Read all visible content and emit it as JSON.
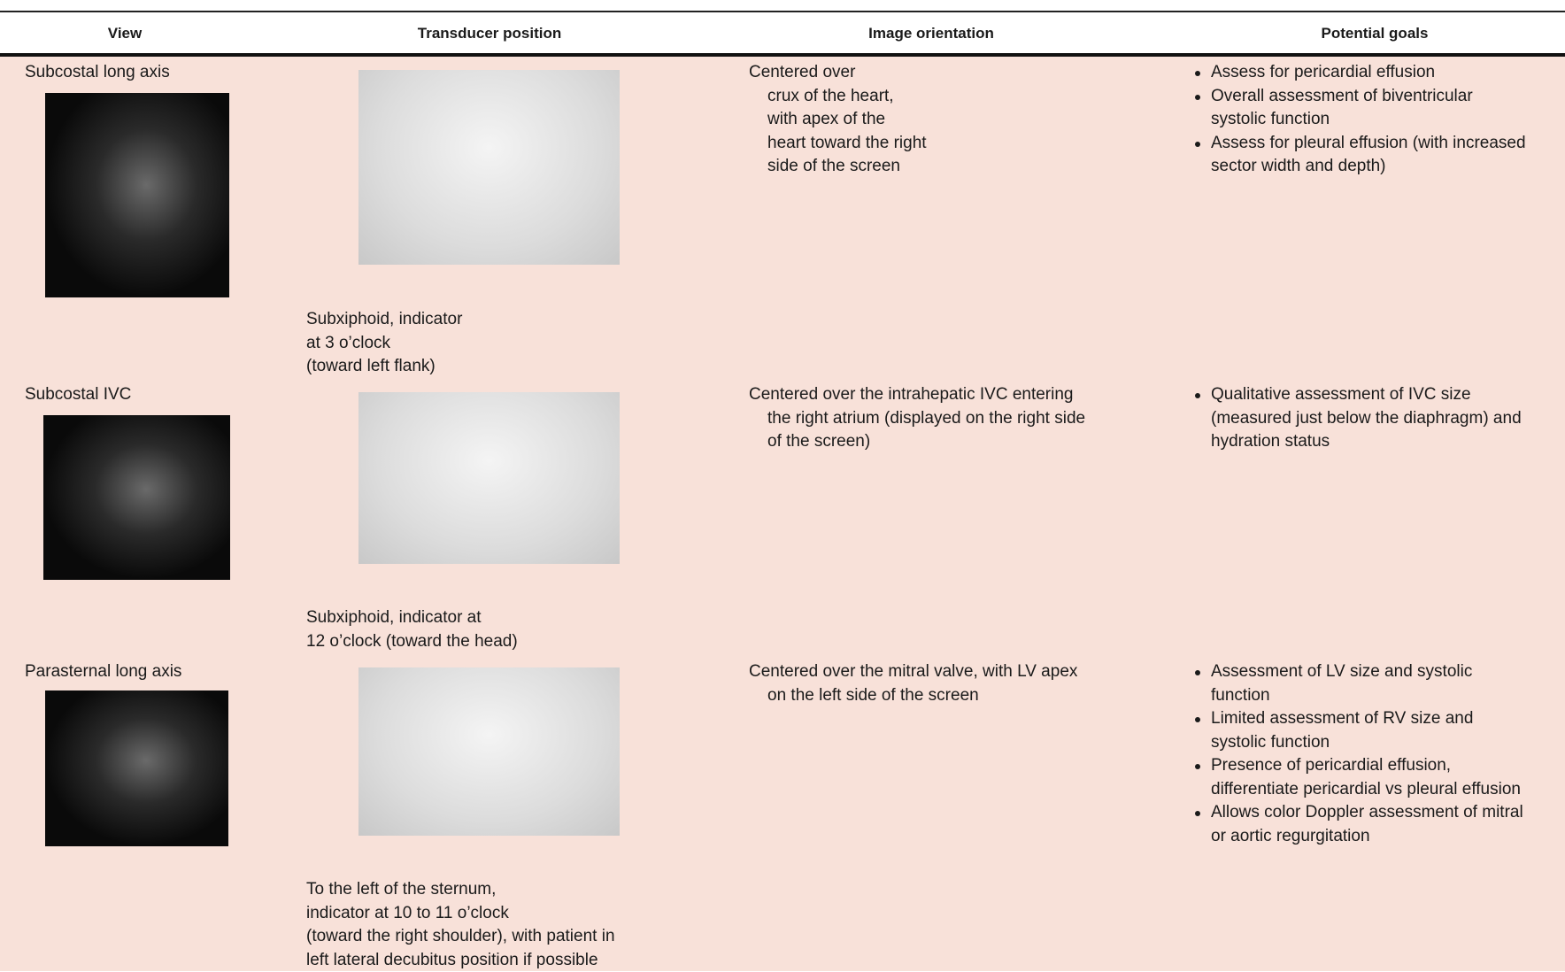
{
  "table": {
    "headers": [
      "View",
      "Transducer position",
      "Image orientation",
      "Potential goals"
    ],
    "rows": [
      {
        "view": "Subcostal long axis",
        "transducer": [
          "Subxiphoid, indicator",
          "at 3 o’clock",
          "(toward left flank)"
        ],
        "orientation": [
          "Centered over",
          "crux of the heart,",
          "with apex of the",
          "heart toward the right",
          "side of the screen"
        ],
        "goals": [
          [
            "Assess for pericardial effusion"
          ],
          [
            "Overall assessment of biventricular",
            "systolic function"
          ],
          [
            "Assess for pleural effusion (with increased",
            "sector width and depth)"
          ]
        ]
      },
      {
        "view": "Subcostal IVC",
        "transducer": [
          "Subxiphoid, indicator at",
          "12 o’clock (toward the head)"
        ],
        "orientation": [
          "Centered over the intrahepatic IVC entering",
          "the right atrium (displayed on the right side",
          "of the screen)"
        ],
        "goals": [
          [
            "Qualitative assessment of IVC size",
            "(measured just below the diaphragm) and",
            "hydration status"
          ]
        ]
      },
      {
        "view": "Parasternal long axis",
        "transducer": [
          "To the left of the sternum,",
          "indicator at 10 to 11 o’clock",
          "(toward the right shoulder), with patient in",
          "left lateral decubitus position if possible"
        ],
        "orientation": [
          "Centered over the mitral valve, with LV apex",
          "on the left side of the screen"
        ],
        "goals": [
          [
            "Assessment of LV size and systolic",
            "function"
          ],
          [
            "Limited assessment of RV size and",
            "systolic function"
          ],
          [
            "Presence of pericardial effusion,",
            "differentiate pericardial vs pleural effusion"
          ],
          [
            "Allows color Doppler assessment of mitral",
            "or aortic regurgitation"
          ]
        ]
      }
    ]
  }
}
